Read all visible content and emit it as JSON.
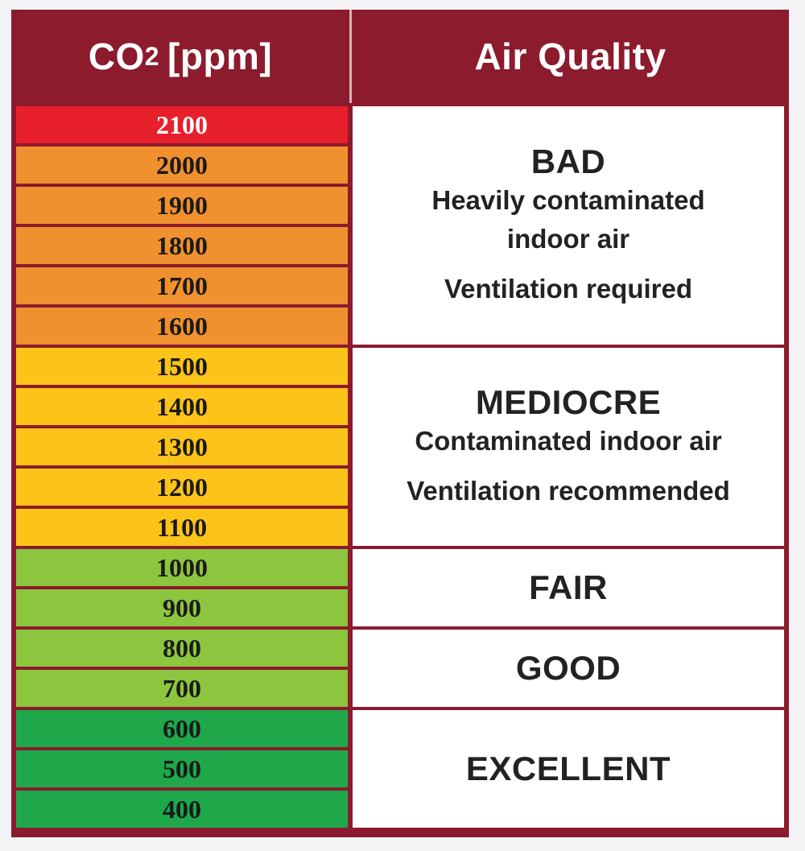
{
  "header": {
    "co2_label_prefix": "CO",
    "co2_label_sub": "2",
    "co2_label_unit": "[ppm]",
    "air_quality_label": "Air Quality"
  },
  "colors": {
    "frame": "#8c1b2d",
    "red": "#e8202b",
    "orange": "#f0902e",
    "yellow": "#fcc419",
    "light_green": "#8cc63f",
    "green": "#1ea84a"
  },
  "ppm_levels": [
    {
      "value": "2100",
      "color": "red",
      "text_color": "#ffffff"
    },
    {
      "value": "2000",
      "color": "orange",
      "text_color": "#1a1a1a"
    },
    {
      "value": "1900",
      "color": "orange",
      "text_color": "#1a1a1a"
    },
    {
      "value": "1800",
      "color": "orange",
      "text_color": "#1a1a1a"
    },
    {
      "value": "1700",
      "color": "orange",
      "text_color": "#1a1a1a"
    },
    {
      "value": "1600",
      "color": "orange",
      "text_color": "#1a1a1a"
    },
    {
      "value": "1500",
      "color": "yellow",
      "text_color": "#1a1a1a"
    },
    {
      "value": "1400",
      "color": "yellow",
      "text_color": "#1a1a1a"
    },
    {
      "value": "1300",
      "color": "yellow",
      "text_color": "#1a1a1a"
    },
    {
      "value": "1200",
      "color": "yellow",
      "text_color": "#1a1a1a"
    },
    {
      "value": "1100",
      "color": "yellow",
      "text_color": "#1a1a1a"
    },
    {
      "value": "1000",
      "color": "light_green",
      "text_color": "#1a1a1a"
    },
    {
      "value": "900",
      "color": "light_green",
      "text_color": "#1a1a1a"
    },
    {
      "value": "800",
      "color": "light_green",
      "text_color": "#1a1a1a"
    },
    {
      "value": "700",
      "color": "light_green",
      "text_color": "#1a1a1a"
    },
    {
      "value": "600",
      "color": "green",
      "text_color": "#1a1a1a"
    },
    {
      "value": "500",
      "color": "green",
      "text_color": "#1a1a1a"
    },
    {
      "value": "400",
      "color": "green",
      "text_color": "#1a1a1a"
    }
  ],
  "quality_groups": [
    {
      "title": "BAD",
      "lines": [
        "Heavily contaminated",
        "indoor air"
      ],
      "note": "Ventilation required",
      "row_count": 6
    },
    {
      "title": "MEDIOCRE",
      "lines": [
        "Contaminated indoor air"
      ],
      "note": "Ventilation recommended",
      "row_count": 5
    },
    {
      "title": "FAIR",
      "lines": [],
      "note": "",
      "row_count": 2
    },
    {
      "title": "GOOD",
      "lines": [],
      "note": "",
      "row_count": 2
    },
    {
      "title": "EXCELLENT",
      "lines": [],
      "note": "",
      "row_count": 3
    }
  ]
}
